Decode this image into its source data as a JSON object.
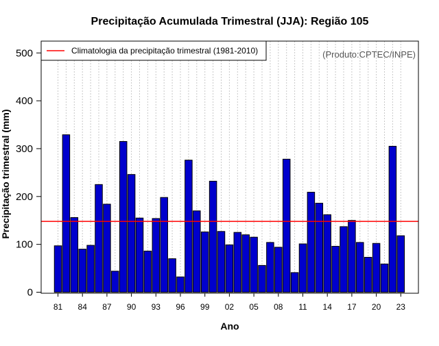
{
  "chart_data": {
    "type": "bar",
    "title": "Precipitação Acumulada Trimestral (JJA): Região 105",
    "xlabel": "Ano",
    "ylabel": "Precipitação trimestral (mm)",
    "ylim": [
      0,
      520
    ],
    "yticks": [
      0,
      100,
      200,
      300,
      400,
      500
    ],
    "grid": "vertical-dotted",
    "source_note": "(Produto:CPTEC/INPE)",
    "colors": {
      "bar": "#0000cc",
      "bar_edge": "#000000",
      "climatology": "#ff0000",
      "grid": "#c8c8c8"
    },
    "categories": [
      "81",
      "82",
      "83",
      "84",
      "85",
      "86",
      "87",
      "88",
      "89",
      "90",
      "91",
      "92",
      "93",
      "94",
      "95",
      "96",
      "97",
      "98",
      "99",
      "00",
      "01",
      "02",
      "03",
      "04",
      "05",
      "06",
      "07",
      "08",
      "09",
      "10",
      "11",
      "12",
      "13",
      "14",
      "15",
      "16",
      "17",
      "18",
      "19",
      "20",
      "21",
      "22",
      "23"
    ],
    "xtick_labels": [
      "81",
      "84",
      "87",
      "90",
      "93",
      "96",
      "99",
      "02",
      "05",
      "08",
      "11",
      "14",
      "17",
      "20",
      "23"
    ],
    "values": [
      97,
      329,
      156,
      90,
      98,
      225,
      184,
      44,
      315,
      246,
      155,
      86,
      154,
      198,
      70,
      32,
      276,
      170,
      126,
      232,
      127,
      99,
      125,
      120,
      115,
      56,
      104,
      94,
      278,
      41,
      101,
      209,
      186,
      162,
      96,
      137,
      150,
      104,
      73,
      102,
      59,
      305,
      118
    ],
    "climatology": {
      "label": "Climatologia da precipitação trimestral (1981-2010)",
      "value": 148
    },
    "legend_position": "top-left"
  }
}
